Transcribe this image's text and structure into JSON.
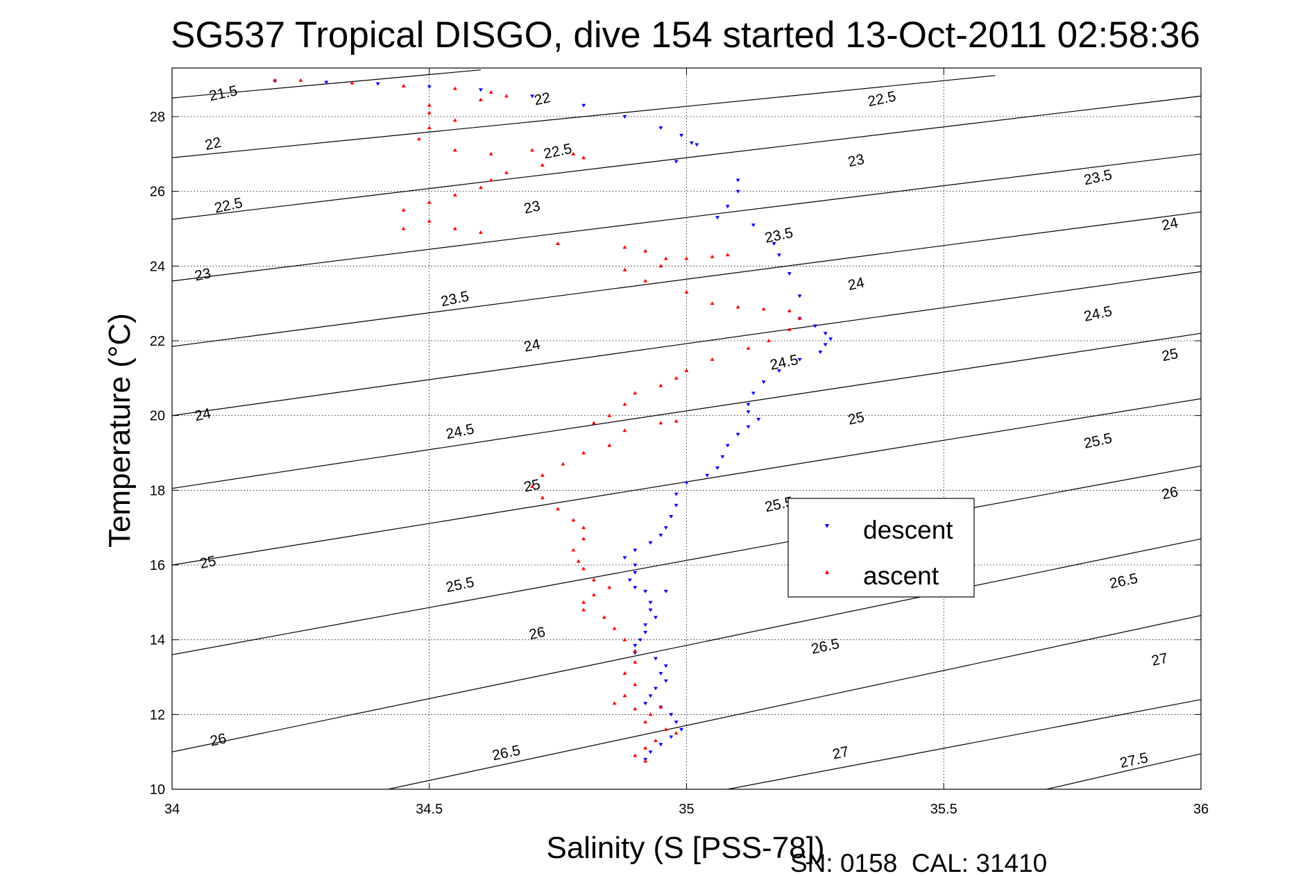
{
  "chart_data": {
    "type": "scatter",
    "title": "SG537 Tropical DISGO, dive 154 started 13-Oct-2011 02:58:36",
    "xlabel": "Salinity (S [PSS-78])",
    "ylabel": "Temperature (°C)",
    "xlim": [
      34,
      36
    ],
    "ylim": [
      10,
      29.3
    ],
    "xticks": [
      "34",
      "34.5",
      "35",
      "35.5",
      "36"
    ],
    "yticks": [
      "10",
      "12",
      "14",
      "16",
      "18",
      "20",
      "22",
      "24",
      "26",
      "28"
    ],
    "grid": true,
    "legend_placement": "center-right",
    "footer": "SN: 0158  CAL: 31410",
    "colors": {
      "descent": "#0000ff",
      "ascent": "#ff0000"
    },
    "density_contours": [
      {
        "label": "21.5",
        "points": [
          [
            34,
            28.5
          ],
          [
            34.6,
            29.25
          ]
        ]
      },
      {
        "label": "22",
        "points": [
          [
            34,
            26.9
          ],
          [
            35.6,
            29.1
          ]
        ]
      },
      {
        "label": "22.5",
        "points": [
          [
            34,
            25.25
          ],
          [
            36,
            28.55
          ]
        ]
      },
      {
        "label": "23",
        "points": [
          [
            34,
            23.6
          ],
          [
            36,
            27.0
          ]
        ]
      },
      {
        "label": "23.5",
        "points": [
          [
            34,
            21.85
          ],
          [
            36,
            25.45
          ]
        ]
      },
      {
        "label": "24",
        "points": [
          [
            34,
            20.0
          ],
          [
            36,
            23.85
          ]
        ]
      },
      {
        "label": "24.5",
        "points": [
          [
            34,
            18.05
          ],
          [
            36,
            22.2
          ]
        ]
      },
      {
        "label": "25",
        "points": [
          [
            34,
            16.0
          ],
          [
            36,
            20.45
          ]
        ]
      },
      {
        "label": "25.5",
        "points": [
          [
            34,
            13.6
          ],
          [
            36,
            18.65
          ]
        ]
      },
      {
        "label": "26",
        "points": [
          [
            34,
            11.0
          ],
          [
            36,
            16.7
          ]
        ]
      },
      {
        "label": "26.5",
        "points": [
          [
            34.42,
            10.0
          ],
          [
            36,
            14.65
          ]
        ]
      },
      {
        "label": "27",
        "points": [
          [
            35.08,
            10.0
          ],
          [
            36,
            12.4
          ]
        ]
      },
      {
        "label": "27.5",
        "points": [
          [
            35.7,
            10.0
          ],
          [
            36,
            10.95
          ]
        ]
      }
    ],
    "contour_labels": [
      {
        "text": "21.5",
        "x": 34.1,
        "y": 28.6
      },
      {
        "text": "22",
        "x": 34.72,
        "y": 28.45
      },
      {
        "text": "22.5",
        "x": 35.38,
        "y": 28.45
      },
      {
        "text": "22",
        "x": 34.08,
        "y": 27.25
      },
      {
        "text": "22.5",
        "x": 34.75,
        "y": 27.05
      },
      {
        "text": "23",
        "x": 35.33,
        "y": 26.8
      },
      {
        "text": "23.5",
        "x": 35.8,
        "y": 26.35
      },
      {
        "text": "22.5",
        "x": 34.11,
        "y": 25.6
      },
      {
        "text": "23",
        "x": 34.7,
        "y": 25.55
      },
      {
        "text": "23.5",
        "x": 35.18,
        "y": 24.8
      },
      {
        "text": "24",
        "x": 35.94,
        "y": 25.1
      },
      {
        "text": "23",
        "x": 34.06,
        "y": 23.75
      },
      {
        "text": "23.5",
        "x": 34.55,
        "y": 23.1
      },
      {
        "text": "24",
        "x": 35.33,
        "y": 23.5
      },
      {
        "text": "24.5",
        "x": 35.8,
        "y": 22.7
      },
      {
        "text": "24",
        "x": 34.7,
        "y": 21.85
      },
      {
        "text": "24.5",
        "x": 35.19,
        "y": 21.4
      },
      {
        "text": "25",
        "x": 35.94,
        "y": 21.6
      },
      {
        "text": "24",
        "x": 34.06,
        "y": 20.0
      },
      {
        "text": "24.5",
        "x": 34.56,
        "y": 19.55
      },
      {
        "text": "25",
        "x": 35.33,
        "y": 19.9
      },
      {
        "text": "25.5",
        "x": 35.8,
        "y": 19.3
      },
      {
        "text": "25",
        "x": 34.7,
        "y": 18.1
      },
      {
        "text": "25.5",
        "x": 35.18,
        "y": 17.6
      },
      {
        "text": "26",
        "x": 35.94,
        "y": 17.9
      },
      {
        "text": "25",
        "x": 34.07,
        "y": 16.05
      },
      {
        "text": "25.5",
        "x": 34.56,
        "y": 15.45
      },
      {
        "text": "26.5",
        "x": 35.85,
        "y": 15.55
      },
      {
        "text": "26",
        "x": 34.71,
        "y": 14.15
      },
      {
        "text": "26.5",
        "x": 35.27,
        "y": 13.8
      },
      {
        "text": "27",
        "x": 35.92,
        "y": 13.45
      },
      {
        "text": "26",
        "x": 34.09,
        "y": 11.3
      },
      {
        "text": "26.5",
        "x": 34.65,
        "y": 10.95
      },
      {
        "text": "27",
        "x": 35.3,
        "y": 10.95
      },
      {
        "text": "27.5",
        "x": 35.87,
        "y": 10.75
      }
    ],
    "series": [
      {
        "name": "descent",
        "marker": "triangle-down",
        "points": [
          [
            34.2,
            28.95
          ],
          [
            34.3,
            28.92
          ],
          [
            34.4,
            28.88
          ],
          [
            34.5,
            28.8
          ],
          [
            34.6,
            28.72
          ],
          [
            34.7,
            28.55
          ],
          [
            34.8,
            28.3
          ],
          [
            34.88,
            28.0
          ],
          [
            34.95,
            27.7
          ],
          [
            34.99,
            27.5
          ],
          [
            35.01,
            27.3
          ],
          [
            35.02,
            27.25
          ],
          [
            34.98,
            26.8
          ],
          [
            35.1,
            26.3
          ],
          [
            35.1,
            26.0
          ],
          [
            35.08,
            25.6
          ],
          [
            35.06,
            25.3
          ],
          [
            35.13,
            25.1
          ],
          [
            35.17,
            24.6
          ],
          [
            35.18,
            24.3
          ],
          [
            35.2,
            23.8
          ],
          [
            35.22,
            23.2
          ],
          [
            35.22,
            22.6
          ],
          [
            35.25,
            22.4
          ],
          [
            35.27,
            22.2
          ],
          [
            35.28,
            22.05
          ],
          [
            35.27,
            21.9
          ],
          [
            35.26,
            21.7
          ],
          [
            35.22,
            21.5
          ],
          [
            35.18,
            21.2
          ],
          [
            35.15,
            20.9
          ],
          [
            35.13,
            20.6
          ],
          [
            35.12,
            20.3
          ],
          [
            35.12,
            20.1
          ],
          [
            35.14,
            19.9
          ],
          [
            35.12,
            19.7
          ],
          [
            35.1,
            19.5
          ],
          [
            35.08,
            19.2
          ],
          [
            35.07,
            18.9
          ],
          [
            35.06,
            18.6
          ],
          [
            35.04,
            18.4
          ],
          [
            35.0,
            18.2
          ],
          [
            34.98,
            17.9
          ],
          [
            34.98,
            17.6
          ],
          [
            34.97,
            17.3
          ],
          [
            34.96,
            17.0
          ],
          [
            34.95,
            16.8
          ],
          [
            34.93,
            16.6
          ],
          [
            34.9,
            16.4
          ],
          [
            34.88,
            16.2
          ],
          [
            34.9,
            16.0
          ],
          [
            34.9,
            15.8
          ],
          [
            34.89,
            15.6
          ],
          [
            34.9,
            15.4
          ],
          [
            34.92,
            15.3
          ],
          [
            34.96,
            15.3
          ],
          [
            34.93,
            15.0
          ],
          [
            34.93,
            14.8
          ],
          [
            34.94,
            14.6
          ],
          [
            34.92,
            14.4
          ],
          [
            34.92,
            14.2
          ],
          [
            34.91,
            14.0
          ],
          [
            34.9,
            13.85
          ],
          [
            34.9,
            13.65
          ],
          [
            34.94,
            13.5
          ],
          [
            34.96,
            13.3
          ],
          [
            34.95,
            13.1
          ],
          [
            34.96,
            12.9
          ],
          [
            34.94,
            12.7
          ],
          [
            34.93,
            12.5
          ],
          [
            34.92,
            12.3
          ],
          [
            34.95,
            12.2
          ],
          [
            34.97,
            12.0
          ],
          [
            34.98,
            11.8
          ],
          [
            34.99,
            11.6
          ],
          [
            34.97,
            11.4
          ],
          [
            34.95,
            11.2
          ],
          [
            34.93,
            11.0
          ],
          [
            34.92,
            10.8
          ]
        ]
      },
      {
        "name": "ascent",
        "marker": "triangle-up",
        "points": [
          [
            34.2,
            28.97
          ],
          [
            34.25,
            28.97
          ],
          [
            34.35,
            28.9
          ],
          [
            34.45,
            28.82
          ],
          [
            34.55,
            28.75
          ],
          [
            34.62,
            28.65
          ],
          [
            34.65,
            28.55
          ],
          [
            34.6,
            28.45
          ],
          [
            34.5,
            28.3
          ],
          [
            34.5,
            28.1
          ],
          [
            34.55,
            27.9
          ],
          [
            34.5,
            27.7
          ],
          [
            34.48,
            27.4
          ],
          [
            34.55,
            27.1
          ],
          [
            34.62,
            27.0
          ],
          [
            34.7,
            27.1
          ],
          [
            34.78,
            27.0
          ],
          [
            34.8,
            26.9
          ],
          [
            34.72,
            26.7
          ],
          [
            34.65,
            26.5
          ],
          [
            34.62,
            26.3
          ],
          [
            34.6,
            26.1
          ],
          [
            34.55,
            25.9
          ],
          [
            34.5,
            25.7
          ],
          [
            34.45,
            25.5
          ],
          [
            34.5,
            25.2
          ],
          [
            34.45,
            25.0
          ],
          [
            34.55,
            25.0
          ],
          [
            34.6,
            24.9
          ],
          [
            34.75,
            24.6
          ],
          [
            34.88,
            24.5
          ],
          [
            34.92,
            24.4
          ],
          [
            34.96,
            24.2
          ],
          [
            35.0,
            24.2
          ],
          [
            35.05,
            24.25
          ],
          [
            35.08,
            24.3
          ],
          [
            34.95,
            24.0
          ],
          [
            34.88,
            23.9
          ],
          [
            34.92,
            23.6
          ],
          [
            35.0,
            23.3
          ],
          [
            35.05,
            23.0
          ],
          [
            35.1,
            22.9
          ],
          [
            35.15,
            22.85
          ],
          [
            35.2,
            22.8
          ],
          [
            35.22,
            22.6
          ],
          [
            35.2,
            22.3
          ],
          [
            35.16,
            22.0
          ],
          [
            35.12,
            21.8
          ],
          [
            35.05,
            21.5
          ],
          [
            35.0,
            21.2
          ],
          [
            34.98,
            21.0
          ],
          [
            34.95,
            20.8
          ],
          [
            34.9,
            20.6
          ],
          [
            34.88,
            20.3
          ],
          [
            34.85,
            20.0
          ],
          [
            34.82,
            19.8
          ],
          [
            34.88,
            19.6
          ],
          [
            34.95,
            19.8
          ],
          [
            34.98,
            19.85
          ],
          [
            34.85,
            19.2
          ],
          [
            34.8,
            19.0
          ],
          [
            34.76,
            18.7
          ],
          [
            34.72,
            18.4
          ],
          [
            34.7,
            18.1
          ],
          [
            34.72,
            17.8
          ],
          [
            34.75,
            17.5
          ],
          [
            34.78,
            17.2
          ],
          [
            34.8,
            17.0
          ],
          [
            34.8,
            16.7
          ],
          [
            34.78,
            16.4
          ],
          [
            34.79,
            16.1
          ],
          [
            34.8,
            15.9
          ],
          [
            34.82,
            15.6
          ],
          [
            34.85,
            15.4
          ],
          [
            34.82,
            15.2
          ],
          [
            34.8,
            15.0
          ],
          [
            34.8,
            14.8
          ],
          [
            34.84,
            14.6
          ],
          [
            34.86,
            14.3
          ],
          [
            34.88,
            14.0
          ],
          [
            34.9,
            13.7
          ],
          [
            34.9,
            13.4
          ],
          [
            34.88,
            13.1
          ],
          [
            34.9,
            12.8
          ],
          [
            34.88,
            12.5
          ],
          [
            34.86,
            12.3
          ],
          [
            34.9,
            12.15
          ],
          [
            34.95,
            12.2
          ],
          [
            34.93,
            12.0
          ],
          [
            34.92,
            11.8
          ],
          [
            34.96,
            11.6
          ],
          [
            34.98,
            11.5
          ],
          [
            34.94,
            11.3
          ],
          [
            34.92,
            11.1
          ],
          [
            34.9,
            10.9
          ],
          [
            34.92,
            10.75
          ]
        ]
      }
    ]
  },
  "legend": {
    "descent_label": "descent",
    "ascent_label": "ascent"
  }
}
